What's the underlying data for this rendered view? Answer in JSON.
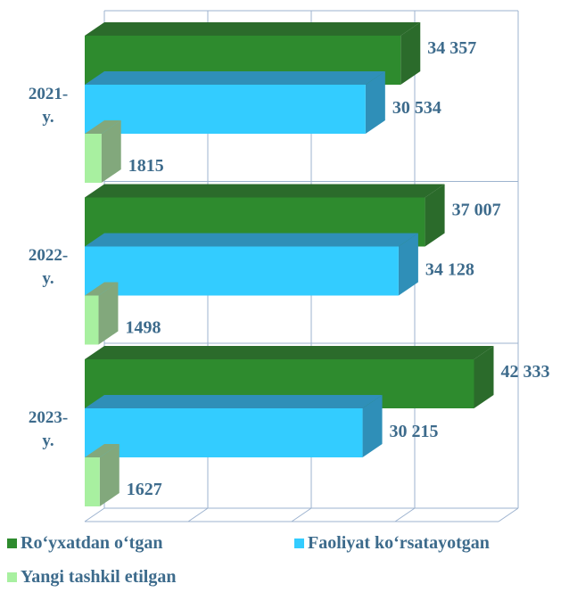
{
  "chart_data": {
    "type": "bar3d_horizontal",
    "categories": [
      "2021-y.",
      "2022-y.",
      "2023-y."
    ],
    "series": [
      {
        "name": "Ro‘yxatdan o‘tgan",
        "color": "#2e8b2e",
        "side": "#2b6b2b",
        "values": [
          34357,
          37007,
          42333
        ],
        "value_labels": [
          "34 357",
          "37 007",
          "42 333"
        ]
      },
      {
        "name": "Faoliyat ko‘rsatayotgan",
        "color": "#33ccff",
        "side": "#2f8fb8",
        "values": [
          30534,
          34128,
          30215
        ],
        "value_labels": [
          "30 534",
          "34 128",
          "30 215"
        ]
      },
      {
        "name": "Yangi tashkil etilgan",
        "color": "#a8f0a0",
        "side": "#82a87c",
        "values": [
          1815,
          1498,
          1627
        ]
      }
    ],
    "xlim": [
      0,
      45000
    ],
    "xticks": [
      0,
      11250,
      22500,
      33750,
      45000
    ],
    "grid": true
  }
}
